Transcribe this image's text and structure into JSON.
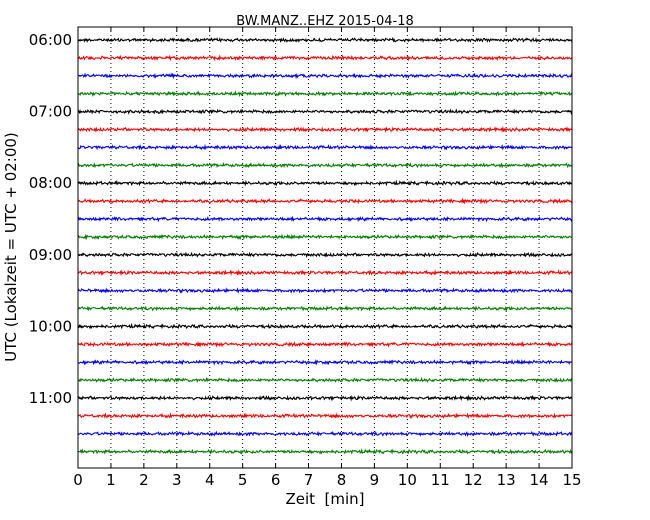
{
  "chart_data": {
    "type": "line",
    "title": "BW.MANZ..EHZ 2015-04-18",
    "xlabel": "Zeit  [min]",
    "ylabel": "UTC (Lokalzeit = UTC + 02:00)",
    "xlim": [
      0,
      15
    ],
    "x_ticks": [
      "0",
      "1",
      "2",
      "3",
      "4",
      "5",
      "6",
      "7",
      "8",
      "9",
      "10",
      "11",
      "12",
      "13",
      "14",
      "15"
    ],
    "y_tick_labels": [
      "06:00",
      "07:00",
      "08:00",
      "09:00",
      "10:00",
      "11:00"
    ],
    "grid": "vertical dotted",
    "series_colors": [
      "#000000",
      "#ff0000",
      "#0000ff",
      "#008000"
    ],
    "trace_start_times": [
      "06:00",
      "06:15",
      "06:30",
      "06:45",
      "07:00",
      "07:15",
      "07:30",
      "07:45",
      "08:00",
      "08:15",
      "08:30",
      "08:45",
      "09:00",
      "09:15",
      "09:30",
      "09:45",
      "10:00",
      "10:15",
      "10:30",
      "10:45",
      "11:00",
      "11:15",
      "11:30",
      "11:45"
    ],
    "trace_minutes": 15
  }
}
